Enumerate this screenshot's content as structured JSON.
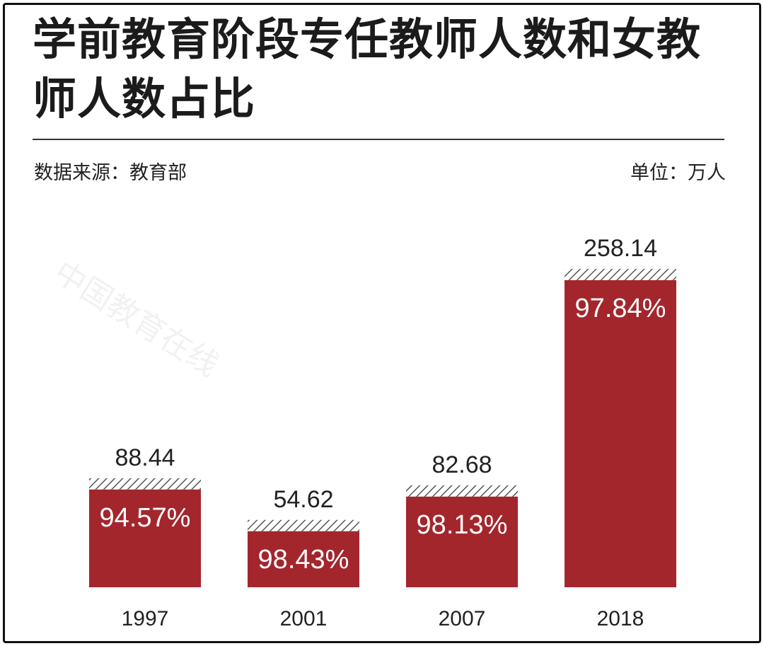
{
  "title": "学前教育阶段专任教师人数和女教师人数占比",
  "source": "数据来源：教育部",
  "unit": "单位：万人",
  "watermark": "中国教育在线",
  "colors": {
    "bar": "#a3262d",
    "hatch": "#555555",
    "text": "#222222"
  },
  "chart_data": {
    "type": "bar",
    "categories": [
      "1997",
      "2001",
      "2007",
      "2018"
    ],
    "series": [
      {
        "values": [
          88.44,
          54.62,
          82.68,
          258.14
        ]
      }
    ],
    "female_share_labels": [
      "94.57%",
      "98.43%",
      "98.13%",
      "97.84%"
    ],
    "female_share": [
      94.57,
      98.43,
      98.13,
      97.84
    ],
    "value_labels": [
      "88.44",
      "54.62",
      "82.68",
      "258.14"
    ],
    "ylim": [
      0,
      300
    ],
    "grid": false,
    "legend": "none"
  }
}
